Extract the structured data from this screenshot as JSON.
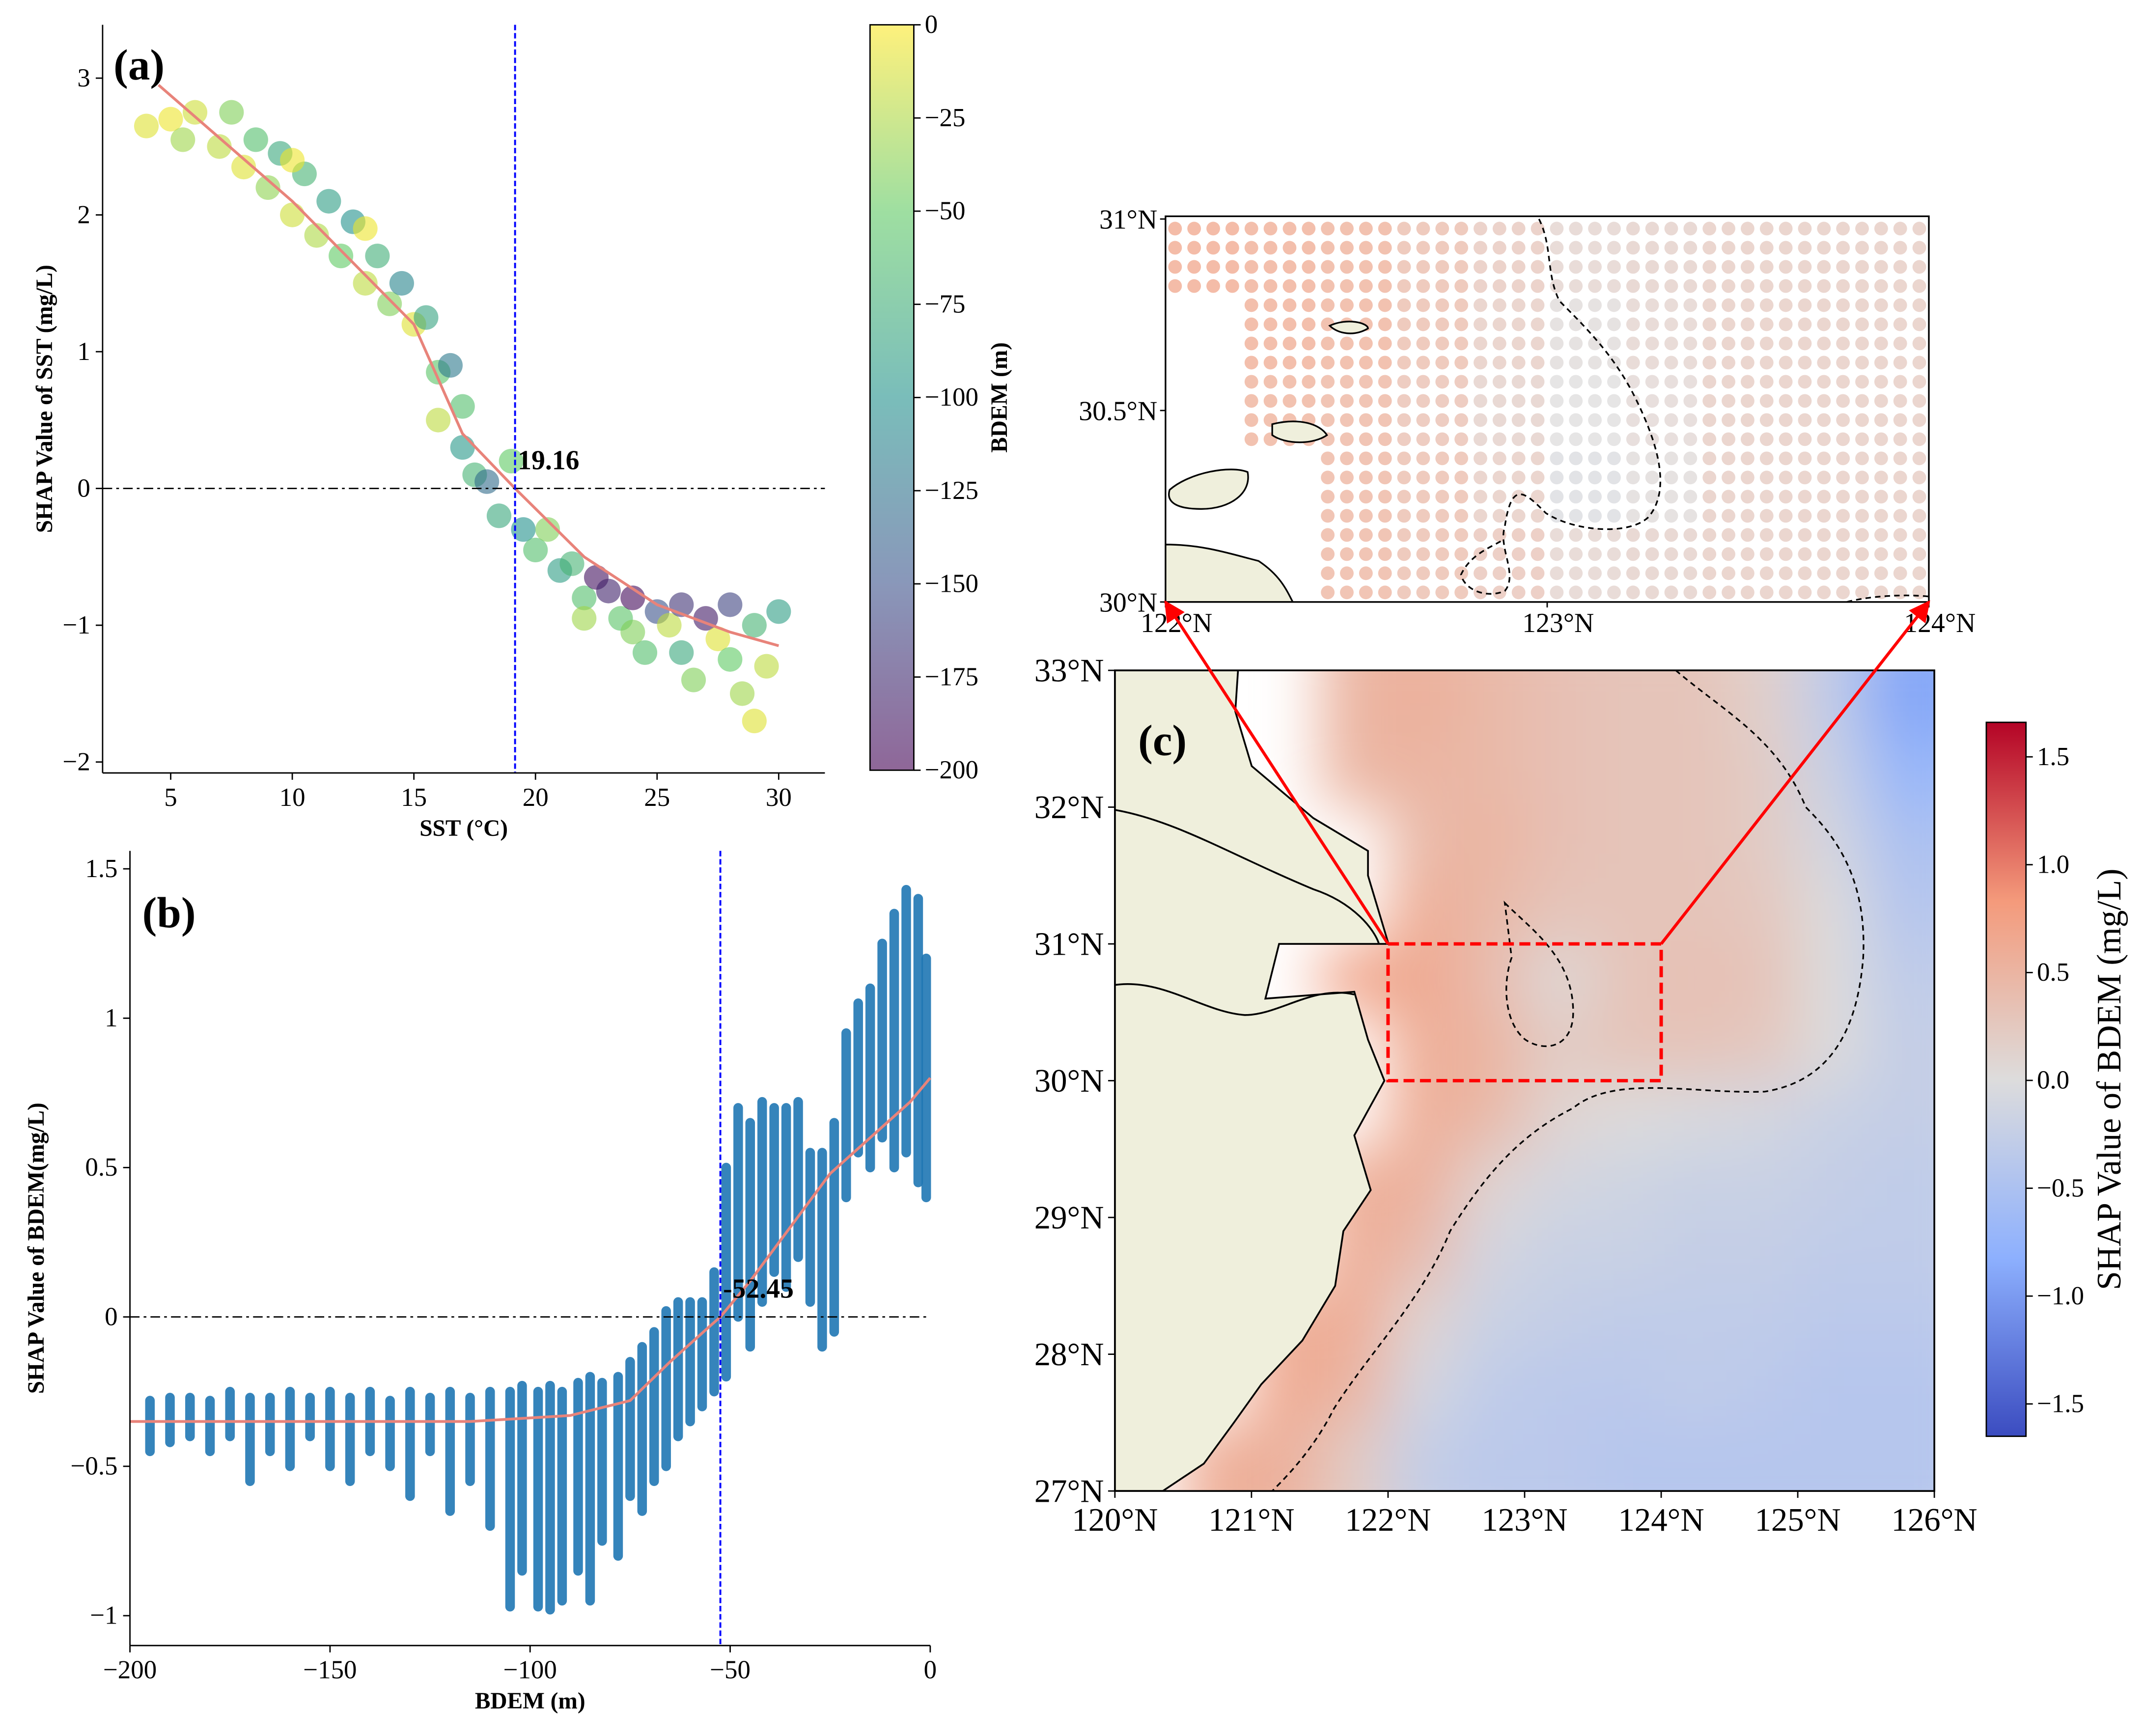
{
  "chart_data": [
    {
      "type": "scatter",
      "panel_label": "(a)",
      "x_label": "SST (°C)",
      "y_label": "SHAP Value of SST (mg/L)",
      "xlim": [
        2.2,
        31.9
      ],
      "ylim": [
        -2.08,
        3.39
      ],
      "xticks": [
        5,
        10,
        15,
        20,
        25,
        30
      ],
      "yticks": [
        {
          "value": -2,
          "label": "−2"
        },
        {
          "value": -1,
          "label": "−1"
        },
        0,
        1,
        2,
        3
      ],
      "zero_line": 0,
      "threshold": {
        "value": 19.16,
        "color": "#0000ff",
        "label_color": "#ff0000"
      },
      "points": {
        "x": [
          4,
          5,
          6,
          5.5,
          7,
          7.5,
          8,
          8.5,
          9,
          9.5,
          10,
          10.5,
          11,
          11.5,
          12,
          12.5,
          13,
          13.5,
          14,
          14.5,
          15,
          15.5,
          16,
          16.5,
          17,
          17,
          17.5,
          18,
          18.5,
          19,
          19.5,
          20,
          20.5,
          21,
          21.5,
          22,
          22.5,
          23,
          23.5,
          24,
          24.5,
          25,
          25.5,
          26,
          26.5,
          27,
          27.5,
          28,
          28.5,
          29,
          29.5,
          30,
          29,
          28,
          26,
          24,
          22,
          16,
          13,
          10
        ],
        "y": [
          2.65,
          2.7,
          2.75,
          2.55,
          2.5,
          2.75,
          2.35,
          2.55,
          2.2,
          2.45,
          2.0,
          2.3,
          1.85,
          2.1,
          1.7,
          1.95,
          1.5,
          1.7,
          1.35,
          1.5,
          1.2,
          1.25,
          0.85,
          0.9,
          0.3,
          0.6,
          0.1,
          0.05,
          -0.2,
          0.2,
          -0.3,
          -0.45,
          -0.3,
          -0.6,
          -0.55,
          -0.8,
          -0.65,
          -0.75,
          -0.95,
          -0.8,
          -1.2,
          -0.9,
          -1.0,
          -0.85,
          -1.4,
          -0.95,
          -1.1,
          -0.85,
          -1.5,
          -1.0,
          -1.3,
          -0.9,
          -1.7,
          -1.25,
          -1.2,
          -1.05,
          -0.95,
          0.5,
          1.9,
          2.4
        ],
        "c": [
          -10,
          -5,
          -15,
          -30,
          -20,
          -40,
          -10,
          -60,
          -35,
          -80,
          -15,
          -70,
          -25,
          -90,
          -50,
          -100,
          -20,
          -75,
          -40,
          -110,
          -10,
          -85,
          -55,
          -120,
          -95,
          -60,
          -70,
          -130,
          -80,
          -50,
          -100,
          -60,
          -40,
          -90,
          -70,
          -60,
          -190,
          -180,
          -55,
          -195,
          -60,
          -150,
          -20,
          -170,
          -40,
          -185,
          -10,
          -160,
          -30,
          -70,
          -20,
          -90,
          -10,
          -50,
          -80,
          -40,
          -30,
          -20,
          -5,
          -5
        ]
      },
      "fit": {
        "color": "#e8837a",
        "x": [
          4.5,
          10,
          15,
          17,
          19.16,
          22,
          25,
          28,
          30
        ],
        "y": [
          2.95,
          2.1,
          1.2,
          0.4,
          0,
          -0.5,
          -0.85,
          -1.05,
          -1.15
        ]
      },
      "colorbar": {
        "label": "BDEM (m)",
        "lim": [
          -200,
          0
        ],
        "ticks": [
          {
            "value": -200,
            "label": "−200"
          },
          {
            "value": -175,
            "label": "−175"
          },
          {
            "value": -150,
            "label": "−150"
          },
          {
            "value": -125,
            "label": "−125"
          },
          {
            "value": -100,
            "label": "−100"
          },
          {
            "value": -75,
            "label": "−75"
          },
          {
            "value": -50,
            "label": "−50"
          },
          {
            "value": -25,
            "label": "−25"
          },
          0
        ],
        "colormap": [
          "#440154",
          "#3b528b",
          "#21918c",
          "#5ec962",
          "#fde725"
        ],
        "alpha": 0.6
      }
    },
    {
      "type": "scatter",
      "panel_label": "(b)",
      "x_label": "BDEM (m)",
      "y_label": "SHAP Value of  BDEM(mg/L)",
      "xlim": [
        -200,
        0
      ],
      "ylim": [
        -1.1,
        1.56
      ],
      "xticks": [
        {
          "value": -200,
          "label": "−200"
        },
        {
          "value": -150,
          "label": "−150"
        },
        {
          "value": -100,
          "label": "−100"
        },
        {
          "value": -50,
          "label": "−50"
        },
        0
      ],
      "yticks": [
        {
          "value": -1,
          "label": "−1"
        },
        {
          "value": -0.5,
          "label": "−0.5"
        },
        0,
        0.5,
        1,
        1.5
      ],
      "zero_line": 0,
      "threshold": {
        "value": -52.45,
        "color": "#0000ff",
        "label_color": "#ff0000"
      },
      "color": "#1f77b4",
      "strips": {
        "x": [
          -195,
          -190,
          -185,
          -180,
          -175,
          -170,
          -165,
          -160,
          -155,
          -150,
          -145,
          -140,
          -135,
          -130,
          -125,
          -120,
          -115,
          -110,
          -105,
          -102,
          -98,
          -95,
          -92,
          -88,
          -85,
          -82,
          -78,
          -75,
          -72,
          -69,
          -66,
          -63,
          -60,
          -57,
          -54,
          -51,
          -48,
          -45,
          -42,
          -39,
          -36,
          -33,
          -30,
          -27,
          -24,
          -21,
          -18,
          -15,
          -12,
          -9,
          -6,
          -3,
          -1
        ],
        "low": [
          -0.45,
          -0.42,
          -0.4,
          -0.45,
          -0.4,
          -0.55,
          -0.45,
          -0.5,
          -0.4,
          -0.5,
          -0.55,
          -0.45,
          -0.5,
          -0.6,
          -0.45,
          -0.65,
          -0.55,
          -0.7,
          -0.97,
          -0.85,
          -0.97,
          -0.98,
          -0.95,
          -0.85,
          -0.95,
          -0.75,
          -0.8,
          -0.6,
          -0.65,
          -0.55,
          -0.5,
          -0.4,
          -0.35,
          -0.3,
          -0.25,
          -0.2,
          0.0,
          -0.1,
          0.05,
          0.15,
          0.1,
          0.2,
          0.05,
          -0.1,
          -0.05,
          0.4,
          0.55,
          0.5,
          0.6,
          0.5,
          0.55,
          0.45,
          0.4
        ],
        "high": [
          -0.28,
          -0.27,
          -0.27,
          -0.28,
          -0.25,
          -0.27,
          -0.27,
          -0.25,
          -0.27,
          -0.25,
          -0.27,
          -0.25,
          -0.28,
          -0.25,
          -0.27,
          -0.25,
          -0.27,
          -0.25,
          -0.25,
          -0.23,
          -0.25,
          -0.23,
          -0.25,
          -0.22,
          -0.2,
          -0.22,
          -0.2,
          -0.15,
          -0.1,
          -0.05,
          0.02,
          0.05,
          0.05,
          0.05,
          0.15,
          0.5,
          0.7,
          0.65,
          0.72,
          0.7,
          0.7,
          0.72,
          0.55,
          0.55,
          0.65,
          0.95,
          1.05,
          1.1,
          1.25,
          1.35,
          1.43,
          1.4,
          1.2
        ]
      },
      "fit": {
        "color": "#e8837a",
        "x": [
          -200,
          -150,
          -115,
          -90,
          -75,
          -65,
          -55,
          -52.45,
          -45,
          -35,
          -25,
          -15,
          -5,
          0
        ],
        "y": [
          -0.35,
          -0.35,
          -0.35,
          -0.33,
          -0.28,
          -0.15,
          -0.03,
          0,
          0.12,
          0.3,
          0.48,
          0.6,
          0.72,
          0.8
        ]
      }
    },
    {
      "type": "map",
      "panel_label": "(c)",
      "xlim": [
        120,
        126
      ],
      "ylim": [
        27,
        33
      ],
      "xticks": [
        {
          "value": 120,
          "label": "120°N"
        },
        {
          "value": 121,
          "label": "121°N"
        },
        {
          "value": 122,
          "label": "122°N"
        },
        {
          "value": 123,
          "label": "123°N"
        },
        {
          "value": 124,
          "label": "124°N"
        },
        {
          "value": 125,
          "label": "125°N"
        },
        {
          "value": 126,
          "label": "126°N"
        }
      ],
      "yticks": [
        {
          "value": 27,
          "label": "27°N"
        },
        {
          "value": 28,
          "label": "28°N"
        },
        {
          "value": 29,
          "label": "29°N"
        },
        {
          "value": 30,
          "label": "30°N"
        },
        {
          "value": 31,
          "label": "31°N"
        },
        {
          "value": 32,
          "label": "32°N"
        },
        {
          "value": 33,
          "label": "33°N"
        }
      ],
      "cell_lon": [
        120,
        120.5,
        121,
        121.5,
        122,
        122.5,
        123,
        123.5,
        124,
        124.5,
        125,
        125.5
      ],
      "cell_lat": [
        33,
        32.5,
        32,
        31.5,
        31,
        30.5,
        30,
        29.5,
        29,
        28.5,
        28,
        27.5
      ],
      "values": [
        [
          null,
          null,
          null,
          0.5,
          0.55,
          0.45,
          0.35,
          0.3,
          0.3,
          0.15,
          -0.3,
          -0.9
        ],
        [
          null,
          null,
          null,
          0.5,
          0.5,
          0.45,
          0.35,
          0.3,
          0.3,
          0.2,
          -0.2,
          -0.7
        ],
        [
          null,
          null,
          null,
          null,
          0.45,
          0.5,
          0.35,
          0.3,
          0.3,
          0.2,
          -0.1,
          -0.5
        ],
        [
          null,
          null,
          null,
          null,
          0.6,
          0.45,
          0.3,
          0.3,
          0.3,
          0.25,
          0.0,
          -0.4
        ],
        [
          null,
          null,
          null,
          0.7,
          0.65,
          0.4,
          0.05,
          0.3,
          0.35,
          0.3,
          0.0,
          -0.3
        ],
        [
          null,
          null,
          null,
          null,
          0.6,
          0.5,
          0.2,
          0.3,
          0.3,
          0.25,
          0.0,
          -0.25
        ],
        [
          null,
          null,
          null,
          null,
          0.6,
          0.45,
          0.1,
          0.0,
          -0.05,
          -0.1,
          -0.2,
          -0.25
        ],
        [
          null,
          null,
          null,
          0.6,
          0.55,
          0.1,
          -0.1,
          -0.15,
          -0.2,
          -0.2,
          -0.25,
          -0.3
        ],
        [
          null,
          null,
          null,
          0.6,
          0.4,
          -0.1,
          -0.2,
          -0.2,
          -0.25,
          -0.25,
          -0.3,
          -0.3
        ],
        [
          null,
          null,
          0.6,
          0.6,
          0.1,
          -0.2,
          -0.25,
          -0.3,
          -0.3,
          -0.3,
          -0.35,
          -0.35
        ],
        [
          null,
          null,
          0.65,
          0.5,
          -0.1,
          -0.3,
          -0.35,
          -0.35,
          -0.3,
          -0.35,
          -0.4,
          -0.4
        ],
        [
          null,
          0.6,
          0.55,
          0.2,
          -0.25,
          -0.35,
          -0.35,
          -0.4,
          -0.4,
          -0.4,
          -0.4,
          -0.4
        ]
      ],
      "box_color": "#ff0000",
      "colorbar": {
        "label": "SHAP Value of BDEM (mg/L)",
        "lim": [
          -1.65,
          1.66
        ],
        "ticks": [
          {
            "value": -1.5,
            "label": "−1.5"
          },
          {
            "value": -1,
            "label": "−1.0"
          },
          {
            "value": -0.5,
            "label": "−0.5"
          },
          {
            "value": 0,
            "label": "0.0"
          },
          0.5,
          {
            "value": 1,
            "label": "1.0"
          },
          1.5
        ],
        "colormap": [
          "#3b4cc0",
          "#8db0fe",
          "#dddcdc",
          "#f49a7b",
          "#b40426"
        ]
      },
      "inset": {
        "xlim": [
          122,
          124
        ],
        "ylim": [
          30,
          31
        ],
        "xticks": [
          {
            "value": 122,
            "label": "122°N"
          },
          {
            "value": 123,
            "label": "123°N"
          },
          {
            "value": 124,
            "label": "124°N"
          }
        ],
        "yticks": [
          {
            "value": 30,
            "label": "30°N"
          },
          {
            "value": 30.5,
            "label": "30.5°N"
          },
          {
            "value": 31,
            "label": "31°N"
          }
        ],
        "cell_lon": [
          122,
          122.2,
          122.4,
          122.6,
          122.8,
          123,
          123.2,
          123.4,
          123.6,
          123.8
        ],
        "cell_lat": [
          31,
          30.8,
          30.6,
          30.4,
          30.2
        ],
        "values": [
          [
            0.7,
            0.65,
            0.6,
            0.45,
            0.3,
            0.15,
            0.2,
            0.25,
            0.25,
            0.25
          ],
          [
            null,
            0.65,
            0.6,
            0.45,
            0.25,
            0.05,
            0.15,
            0.25,
            0.25,
            0.25
          ],
          [
            null,
            0.6,
            0.55,
            0.4,
            0.2,
            0.0,
            0.1,
            0.25,
            0.25,
            0.25
          ],
          [
            null,
            null,
            0.55,
            0.45,
            0.25,
            -0.05,
            0.05,
            0.25,
            0.25,
            0.25
          ],
          [
            null,
            null,
            0.55,
            0.45,
            0.35,
            0.15,
            0.2,
            0.25,
            0.25,
            0.25
          ]
        ]
      }
    }
  ]
}
